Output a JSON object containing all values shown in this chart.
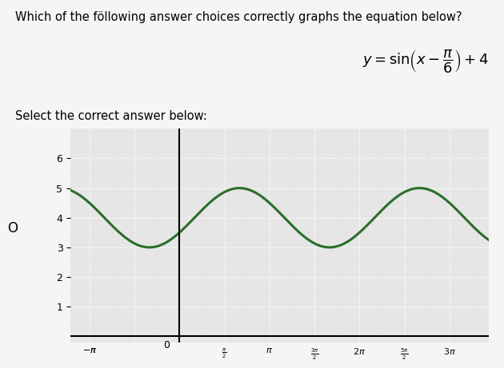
{
  "title_text": "Which of the föllowing answer choices correctly graphs the equation below?",
  "subtitle": "Select the correct answer below:",
  "curve_color": "#2a6e2a",
  "curve_linewidth": 2.2,
  "bg_color": "#f5f5f5",
  "plot_bg_color": "#e6e6e6",
  "grid_color": "#ffffff",
  "grid_linewidth": 0.7,
  "fine_grid_color": "#d8d8d8",
  "xlim_left": -3.8,
  "xlim_right": 10.8,
  "ylim_bottom": -0.2,
  "ylim_top": 7.0,
  "yticks": [
    1,
    2,
    3,
    4,
    5,
    6
  ],
  "phase_shift": 0.5235987755982988,
  "vertical_shift": 4,
  "amplitude": 1,
  "pi": 3.141592653589793
}
